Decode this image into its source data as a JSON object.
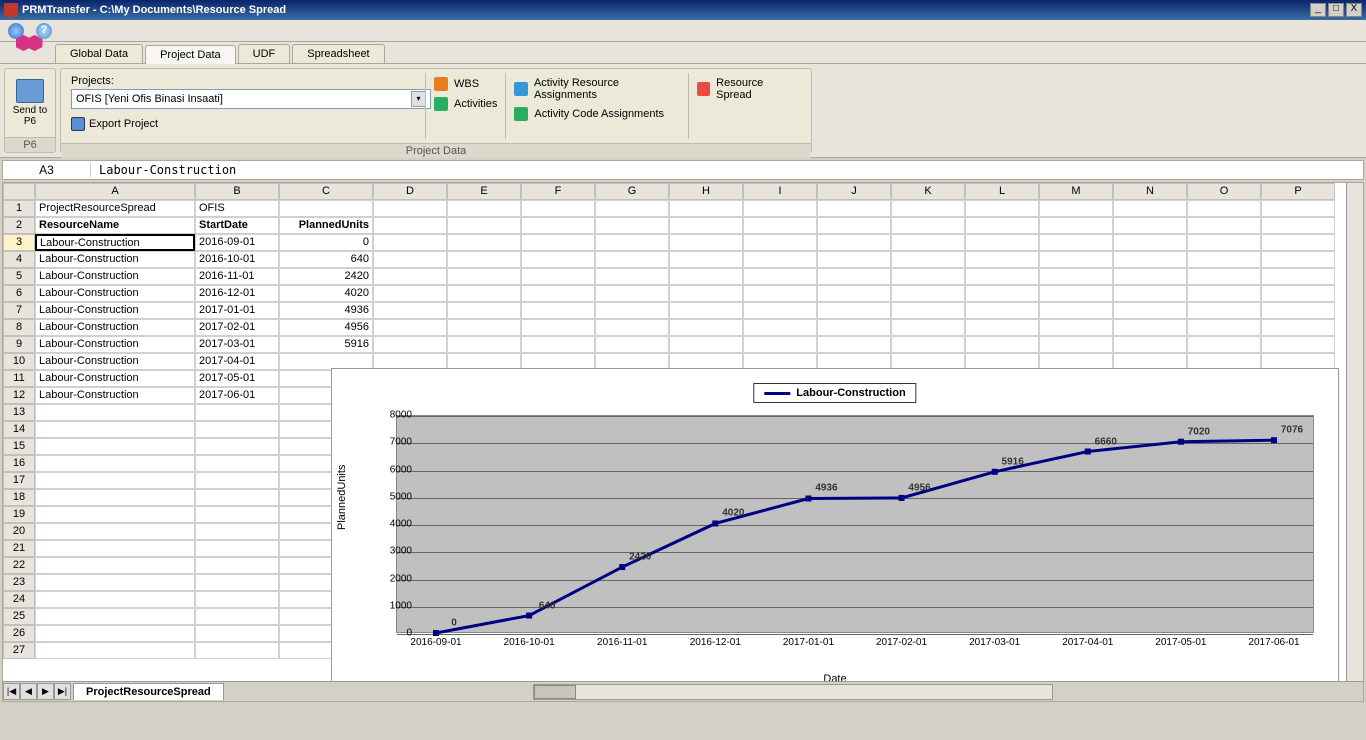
{
  "window": {
    "title": "PRMTransfer - C:\\My Documents\\Resource Spread",
    "min": "_",
    "max": "□",
    "close": "X"
  },
  "tabs": [
    "Global Data",
    "Project Data",
    "UDF",
    "Spreadsheet"
  ],
  "active_tab": 1,
  "ribbon": {
    "send_btn": "Send to P6",
    "p6_label": "P6",
    "projects_label": "Projects:",
    "project_value": "OFIS [Yeni Ofis Binasi Insaati]",
    "export": "Export Project",
    "group_label": "Project Data",
    "links": {
      "wbs": "WBS",
      "activities": "Activities",
      "ara": "Activity Resource Assignments",
      "aca": "Activity Code Assignments",
      "rs": "Resource Spread"
    }
  },
  "cellref": "A3",
  "formula": "Labour-Construction",
  "columns": [
    "A",
    "B",
    "C",
    "D",
    "E",
    "F",
    "G",
    "H",
    "I",
    "J",
    "K",
    "L",
    "M",
    "N",
    "O",
    "P"
  ],
  "rows": [
    {
      "n": 1,
      "a": "ProjectResourceSpread",
      "b": "OFIS",
      "c": ""
    },
    {
      "n": 2,
      "a": "ResourceName",
      "b": "StartDate",
      "c": "PlannedUnits",
      "bold": true
    },
    {
      "n": 3,
      "a": "Labour-Construction",
      "b": "2016-09-01",
      "c": "0",
      "sel": true
    },
    {
      "n": 4,
      "a": "Labour-Construction",
      "b": "2016-10-01",
      "c": "640"
    },
    {
      "n": 5,
      "a": "Labour-Construction",
      "b": "2016-11-01",
      "c": "2420"
    },
    {
      "n": 6,
      "a": "Labour-Construction",
      "b": "2016-12-01",
      "c": "4020"
    },
    {
      "n": 7,
      "a": "Labour-Construction",
      "b": "2017-01-01",
      "c": "4936"
    },
    {
      "n": 8,
      "a": "Labour-Construction",
      "b": "2017-02-01",
      "c": "4956"
    },
    {
      "n": 9,
      "a": "Labour-Construction",
      "b": "2017-03-01",
      "c": "5916"
    },
    {
      "n": 10,
      "a": "Labour-Construction",
      "b": "2017-04-01",
      "c": ""
    },
    {
      "n": 11,
      "a": "Labour-Construction",
      "b": "2017-05-01",
      "c": ""
    },
    {
      "n": 12,
      "a": "Labour-Construction",
      "b": "2017-06-01",
      "c": ""
    },
    {
      "n": 13,
      "a": "",
      "b": "",
      "c": ""
    },
    {
      "n": 14,
      "a": "",
      "b": "",
      "c": ""
    },
    {
      "n": 15,
      "a": "",
      "b": "",
      "c": ""
    },
    {
      "n": 16,
      "a": "",
      "b": "",
      "c": ""
    },
    {
      "n": 17,
      "a": "",
      "b": "",
      "c": ""
    },
    {
      "n": 18,
      "a": "",
      "b": "",
      "c": ""
    },
    {
      "n": 19,
      "a": "",
      "b": "",
      "c": ""
    },
    {
      "n": 20,
      "a": "",
      "b": "",
      "c": ""
    },
    {
      "n": 21,
      "a": "",
      "b": "",
      "c": ""
    },
    {
      "n": 22,
      "a": "",
      "b": "",
      "c": ""
    },
    {
      "n": 23,
      "a": "",
      "b": "",
      "c": ""
    },
    {
      "n": 24,
      "a": "",
      "b": "",
      "c": ""
    },
    {
      "n": 25,
      "a": "",
      "b": "",
      "c": ""
    },
    {
      "n": 26,
      "a": "",
      "b": "",
      "c": ""
    },
    {
      "n": 27,
      "a": "",
      "b": "",
      "c": ""
    }
  ],
  "chart": {
    "type": "line",
    "legend": "Labour-Construction",
    "xlabel": "Date",
    "ylabel": "PlannedUnits",
    "line_color": "#000080",
    "line_width": 3,
    "plot_bg": "#c0c0c0",
    "grid_color": "#666666",
    "ylim": [
      0,
      8000
    ],
    "ytick_step": 1000,
    "yticks": [
      0,
      1000,
      2000,
      3000,
      4000,
      5000,
      6000,
      7000,
      8000
    ],
    "categories": [
      "2016-09-01",
      "2016-10-01",
      "2016-11-01",
      "2016-12-01",
      "2017-01-01",
      "2017-02-01",
      "2017-03-01",
      "2017-04-01",
      "2017-05-01",
      "2017-06-01"
    ],
    "values": [
      0,
      640,
      2420,
      4020,
      4936,
      4956,
      5916,
      6660,
      7020,
      7076
    ],
    "data_labels": [
      "0",
      "640",
      "2420",
      "4020",
      "4936",
      "4956",
      "5916",
      "6660",
      "7020",
      "7076"
    ]
  },
  "sheet_tab": "ProjectResourceSpread",
  "nav": {
    "first": "|◀",
    "prev": "◀",
    "next": "▶",
    "last": "▶|"
  }
}
